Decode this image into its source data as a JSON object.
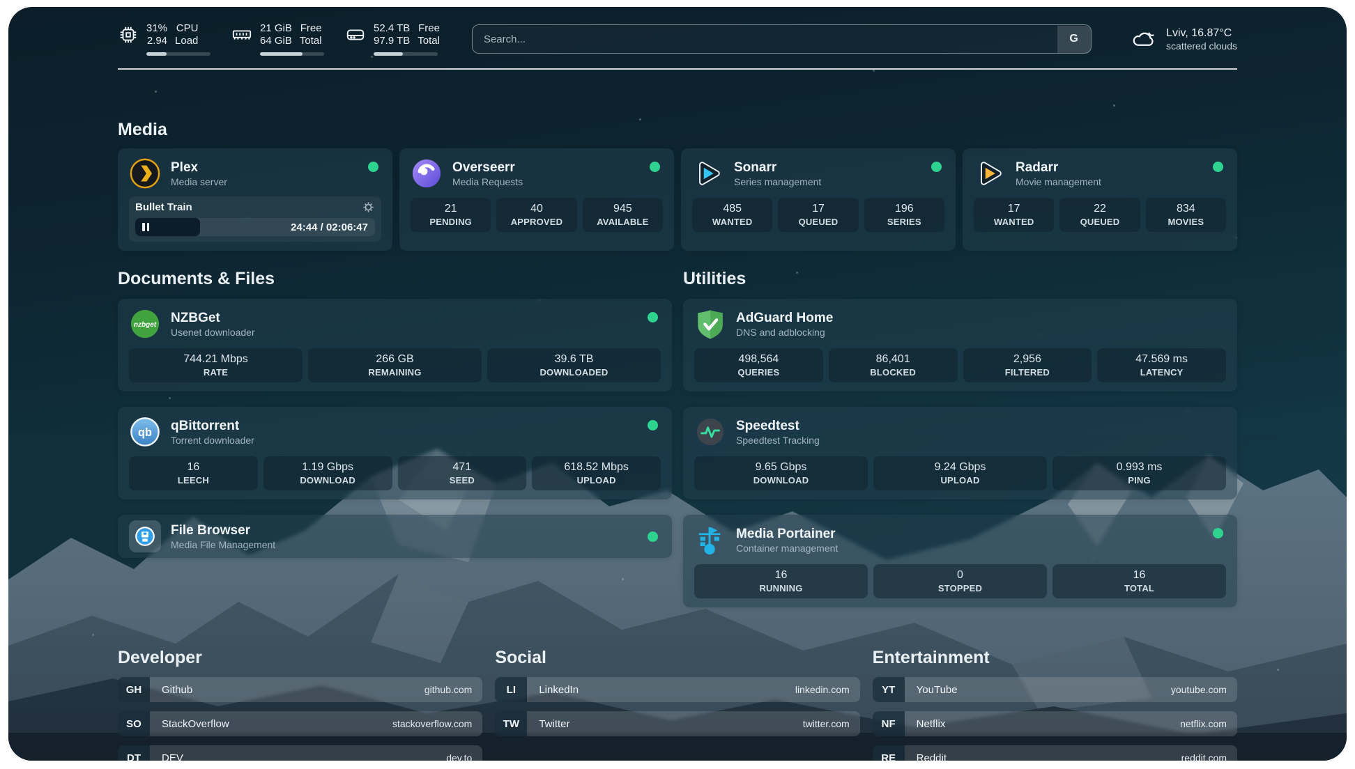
{
  "topbar": {
    "cpu": {
      "percent": "31%",
      "load": "2.94",
      "label1": "CPU",
      "label2": "Load",
      "progress": 31
    },
    "memory": {
      "free": "21 GiB",
      "total": "64 GiB",
      "label1": "Free",
      "label2": "Total",
      "progress": 66
    },
    "disk": {
      "free": "52.4 TB",
      "total": "97.9 TB",
      "label1": "Free",
      "label2": "Total",
      "progress": 46
    },
    "search": {
      "placeholder": "Search...",
      "button": "G"
    },
    "weather": {
      "line1": "Lviv, 16.87°C",
      "line2": "scattered clouds"
    }
  },
  "sections": {
    "media": "Media",
    "documents": "Documents & Files",
    "utilities": "Utilities",
    "developer": "Developer",
    "social": "Social",
    "entertainment": "Entertainment"
  },
  "services": {
    "plex": {
      "name": "Plex",
      "desc": "Media server",
      "now_playing": "Bullet Train",
      "time": "24:44 / 02:06:47"
    },
    "overseerr": {
      "name": "Overseerr",
      "desc": "Media Requests",
      "stats": [
        {
          "value": "21",
          "label": "PENDING"
        },
        {
          "value": "40",
          "label": "APPROVED"
        },
        {
          "value": "945",
          "label": "AVAILABLE"
        }
      ]
    },
    "sonarr": {
      "name": "Sonarr",
      "desc": "Series management",
      "stats": [
        {
          "value": "485",
          "label": "WANTED"
        },
        {
          "value": "17",
          "label": "QUEUED"
        },
        {
          "value": "196",
          "label": "SERIES"
        }
      ]
    },
    "radarr": {
      "name": "Radarr",
      "desc": "Movie management",
      "stats": [
        {
          "value": "17",
          "label": "WANTED"
        },
        {
          "value": "22",
          "label": "QUEUED"
        },
        {
          "value": "834",
          "label": "MOVIES"
        }
      ]
    },
    "nzbget": {
      "name": "NZBGet",
      "desc": "Usenet downloader",
      "icon_text": "nzbget",
      "stats": [
        {
          "value": "744.21 Mbps",
          "label": "RATE"
        },
        {
          "value": "266 GB",
          "label": "REMAINING"
        },
        {
          "value": "39.6 TB",
          "label": "DOWNLOADED"
        }
      ]
    },
    "qbittorrent": {
      "name": "qBittorrent",
      "desc": "Torrent downloader",
      "icon_text": "qb",
      "stats": [
        {
          "value": "16",
          "label": "LEECH"
        },
        {
          "value": "1.19 Gbps",
          "label": "DOWNLOAD"
        },
        {
          "value": "471",
          "label": "SEED"
        },
        {
          "value": "618.52 Mbps",
          "label": "UPLOAD"
        }
      ]
    },
    "filebrowser": {
      "name": "File Browser",
      "desc": "Media File Management"
    },
    "adguard": {
      "name": "AdGuard Home",
      "desc": "DNS and adblocking",
      "stats": [
        {
          "value": "498,564",
          "label": "QUERIES"
        },
        {
          "value": "86,401",
          "label": "BLOCKED"
        },
        {
          "value": "2,956",
          "label": "FILTERED"
        },
        {
          "value": "47.569 ms",
          "label": "LATENCY"
        }
      ]
    },
    "speedtest": {
      "name": "Speedtest",
      "desc": "Speedtest Tracking",
      "stats": [
        {
          "value": "9.65 Gbps",
          "label": "DOWNLOAD"
        },
        {
          "value": "9.24 Gbps",
          "label": "UPLOAD"
        },
        {
          "value": "0.993 ms",
          "label": "PING"
        }
      ]
    },
    "portainer": {
      "name": "Media Portainer",
      "desc": "Container management",
      "stats": [
        {
          "value": "16",
          "label": "RUNNING"
        },
        {
          "value": "0",
          "label": "STOPPED"
        },
        {
          "value": "16",
          "label": "TOTAL"
        }
      ]
    }
  },
  "bookmarks": {
    "developer": {
      "items": [
        {
          "abbr": "GH",
          "name": "Github",
          "url": "github.com"
        },
        {
          "abbr": "SO",
          "name": "StackOverflow",
          "url": "stackoverflow.com"
        },
        {
          "abbr": "DT",
          "name": "DEV",
          "url": "dev.to"
        }
      ]
    },
    "social": {
      "items": [
        {
          "abbr": "LI",
          "name": "LinkedIn",
          "url": "linkedin.com"
        },
        {
          "abbr": "TW",
          "name": "Twitter",
          "url": "twitter.com"
        }
      ]
    },
    "entertainment": {
      "items": [
        {
          "abbr": "YT",
          "name": "YouTube",
          "url": "youtube.com"
        },
        {
          "abbr": "NF",
          "name": "Netflix",
          "url": "netflix.com"
        },
        {
          "abbr": "RE",
          "name": "Reddit",
          "url": "reddit.com"
        }
      ]
    }
  },
  "colors": {
    "status_ok": "#2ed390",
    "accent_plex": "#e5a00d"
  }
}
